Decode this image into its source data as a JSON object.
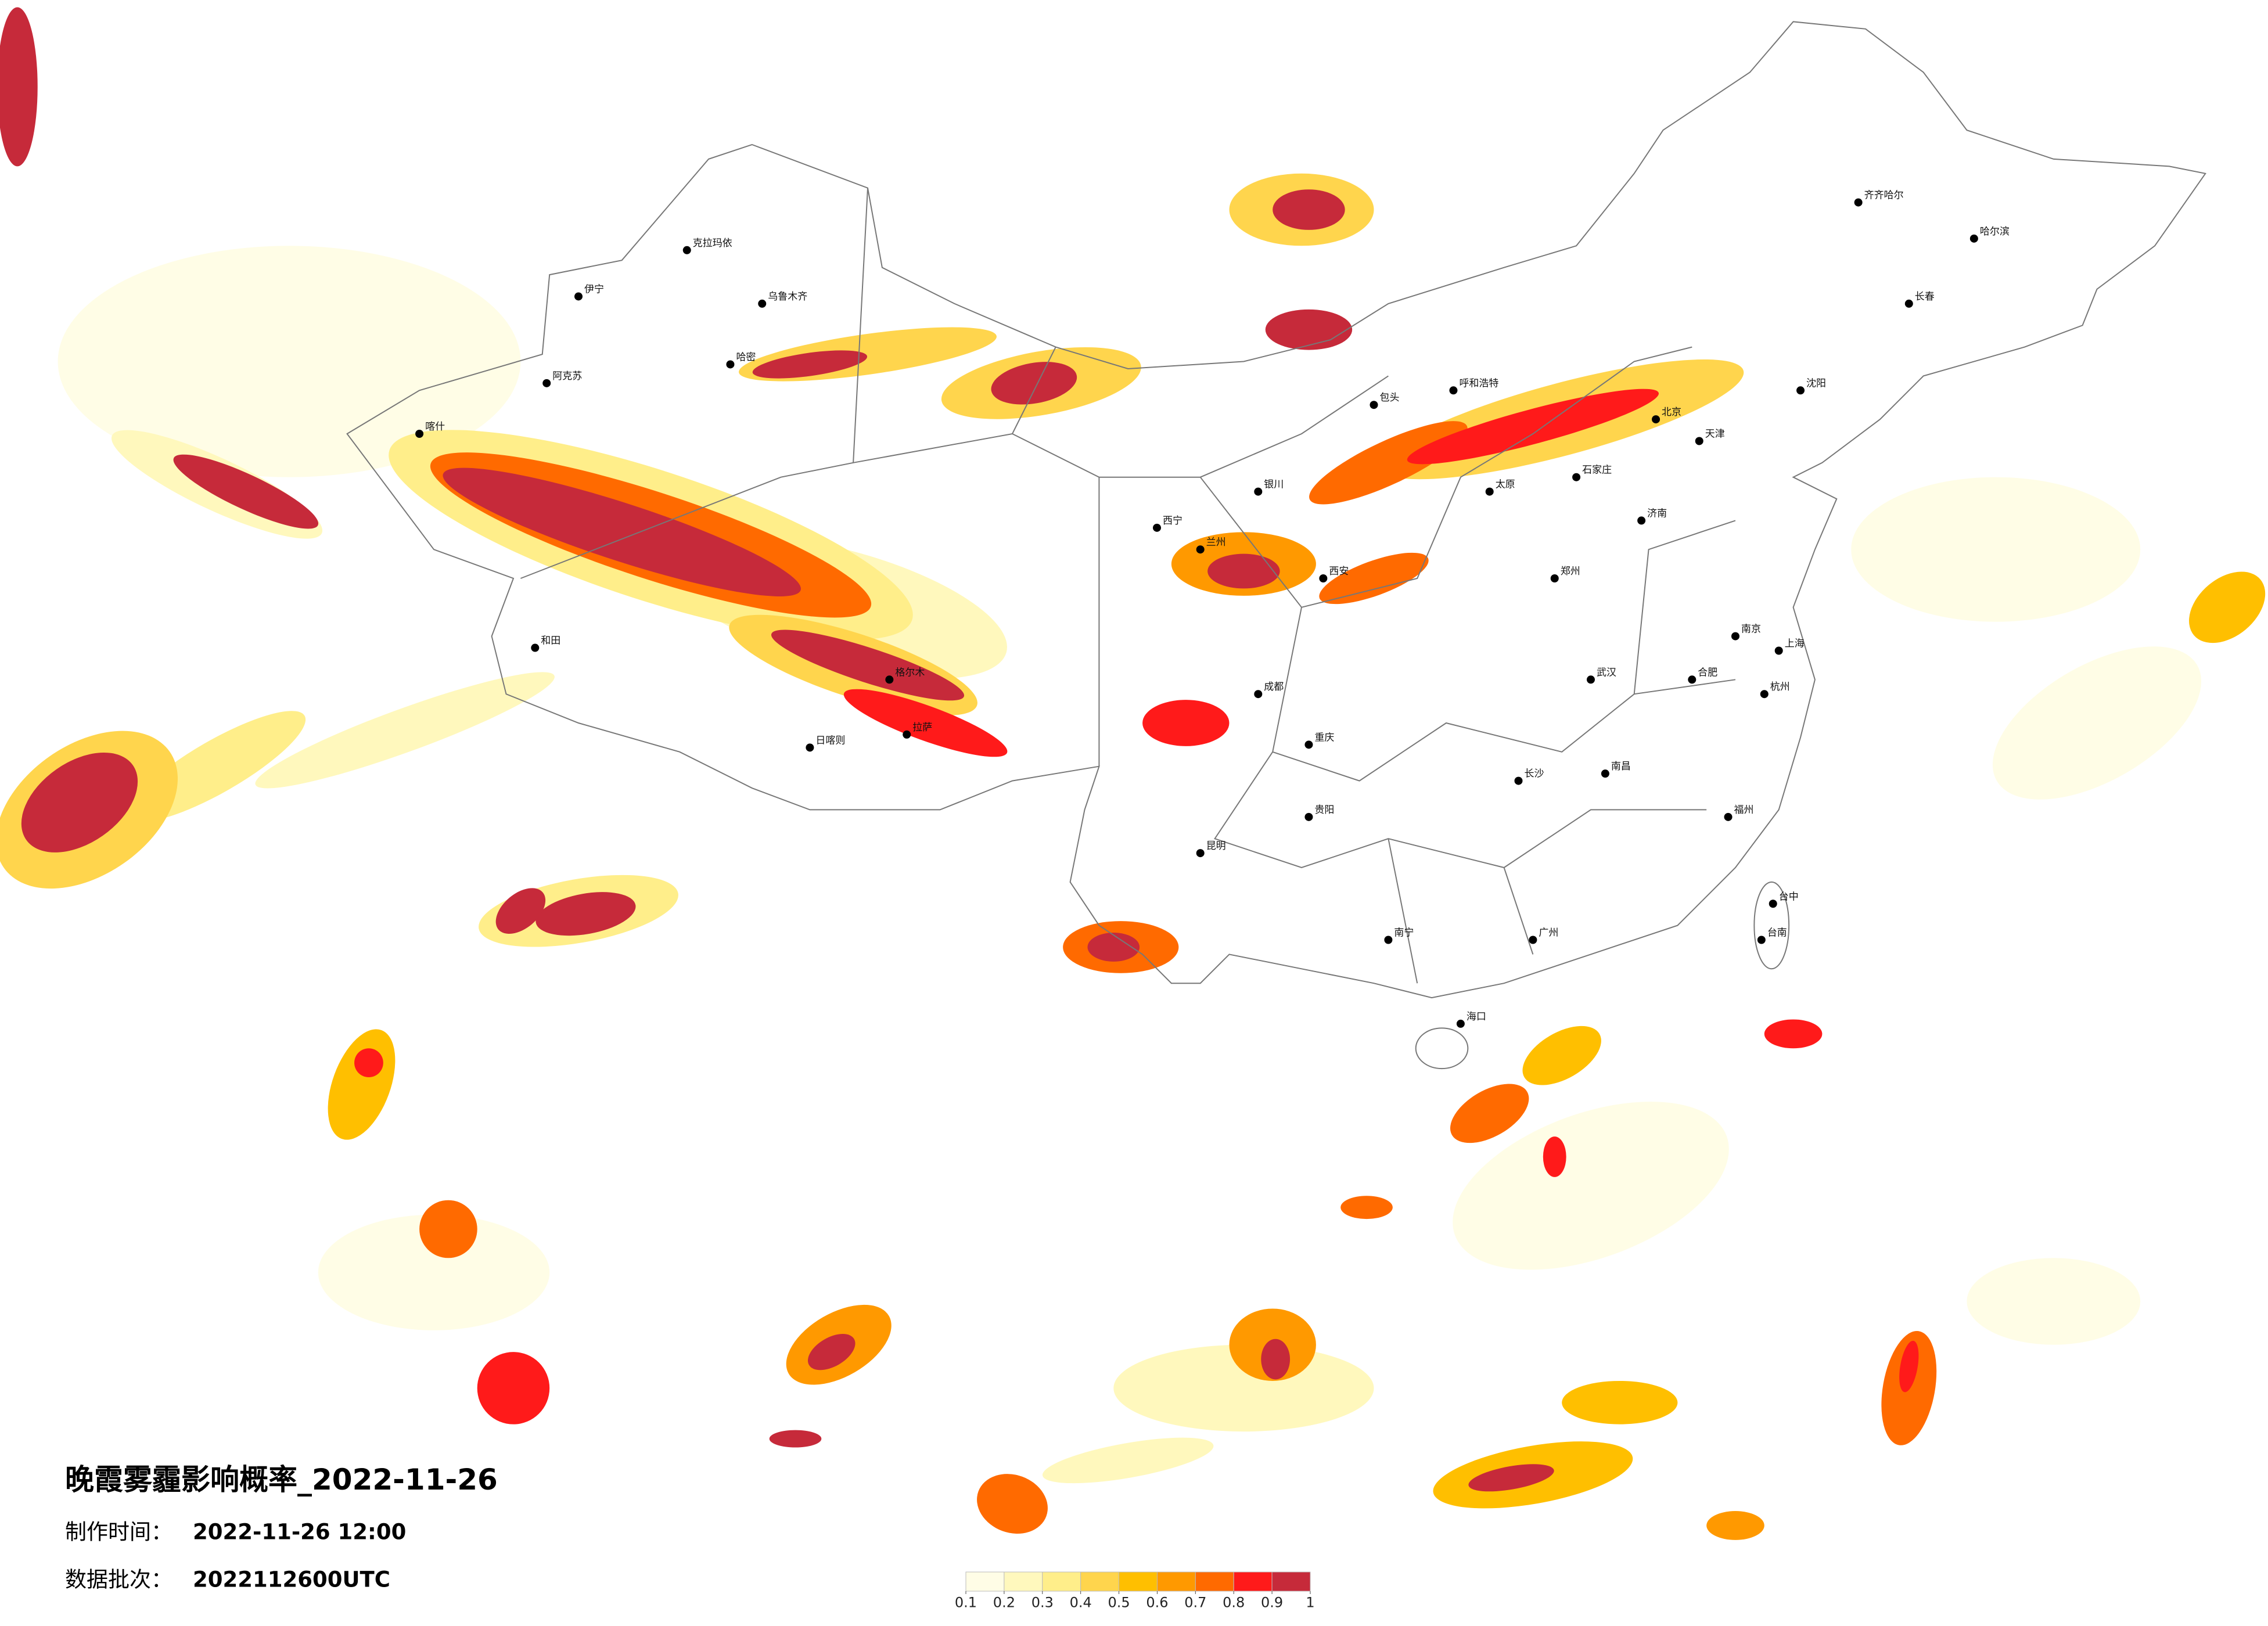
{
  "map": {
    "title": "晚霞雾霾影响概率_2022-11-26",
    "made_time_label": "制作时间：",
    "made_time": "2022-11-26 12:00",
    "batch_label": "数据批次：",
    "batch": "2022112600UTC",
    "legend": {
      "colors": [
        "#fffde6",
        "#fff8bd",
        "#ffee8a",
        "#ffd54d",
        "#ffbf00",
        "#ff9900",
        "#ff6a00",
        "#ff1a1a",
        "#c62a3a"
      ],
      "ticks": [
        0.1,
        0.2,
        0.3,
        0.4,
        0.5,
        0.6,
        0.7,
        0.8,
        0.9,
        1
      ]
    },
    "cities": [
      "乌鲁木齐",
      "克拉玛依",
      "伊宁",
      "阿克苏",
      "喀什",
      "和田",
      "哈密",
      "格尔木",
      "拉萨",
      "日喀则",
      "西宁",
      "兰州",
      "银川",
      "呼和浩特",
      "包头",
      "太原",
      "石家庄",
      "北京",
      "天津",
      "沈阳",
      "长春",
      "哈尔滨",
      "齐齐哈尔",
      "济南",
      "郑州",
      "西安",
      "成都",
      "重庆",
      "贵阳",
      "昆明",
      "南宁",
      "广州",
      "长沙",
      "武汉",
      "南昌",
      "合肥",
      "南京",
      "上海",
      "杭州",
      "福州",
      "海口",
      "台中",
      "台南"
    ]
  }
}
